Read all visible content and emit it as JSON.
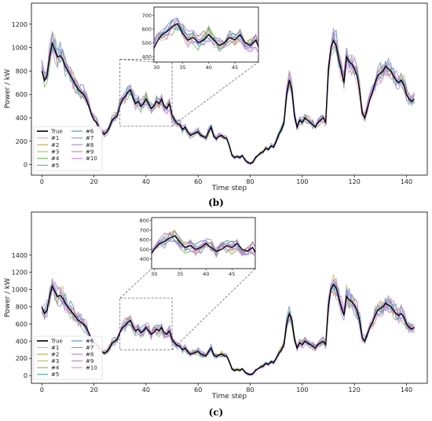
{
  "panels": [
    {
      "label": "(b)",
      "xlabel": "Time step",
      "ylabel": "Power / kW"
    },
    {
      "label": "(c)",
      "xlabel": "Time step",
      "ylabel": "Power / kW"
    }
  ],
  "legend_entries": [
    "True",
    "#1",
    "#2",
    "#3",
    "#4",
    "#5",
    "#6",
    "#7",
    "#8",
    "#9",
    "#10"
  ],
  "series_colors": {
    "True": "#000000",
    "#1": "#f0a3b0",
    "#2": "#c9a02a",
    "#3": "#c7b35a",
    "#4": "#6dba4a",
    "#5": "#4ab3a8",
    "#6": "#3a8ed8",
    "#7": "#7b8ff0",
    "#8": "#a38ae0",
    "#9": "#c07ad8",
    "#10": "#e27fd9"
  },
  "chart_data": [
    {
      "type": "line",
      "panel": "(b)",
      "xlabel": "Time step",
      "ylabel": "Power / kW",
      "xlim": [
        -4,
        148
      ],
      "ylim": [
        -90,
        1380
      ],
      "xticks": [
        0,
        20,
        40,
        60,
        80,
        100,
        120,
        140
      ],
      "yticks": [
        0,
        200,
        400,
        600,
        800,
        1000,
        1200
      ],
      "grid": false,
      "legend_position": "lower-left",
      "true_series": {
        "x_start": 0,
        "values": [
          800,
          720,
          760,
          920,
          1040,
          980,
          920,
          930,
          900,
          840,
          800,
          760,
          720,
          680,
          640,
          620,
          600,
          560,
          500,
          430,
          380,
          360,
          310,
          280,
          260,
          280,
          320,
          380,
          400,
          420,
          500,
          560,
          580,
          620,
          640,
          570,
          520,
          540,
          500,
          520,
          560,
          520,
          480,
          500,
          540,
          520,
          560,
          500,
          480,
          520,
          420,
          380,
          350,
          340,
          300,
          320,
          280,
          250,
          260,
          270,
          280,
          250,
          240,
          230,
          280,
          320,
          240,
          220,
          240,
          250,
          230,
          220,
          160,
          80,
          60,
          70,
          60,
          80,
          40,
          20,
          10,
          20,
          60,
          80,
          100,
          110,
          140,
          130,
          160,
          150,
          200,
          260,
          300,
          360,
          600,
          720,
          640,
          420,
          320,
          380,
          360,
          400,
          380,
          360,
          340,
          320,
          360,
          380,
          400,
          360,
          800,
          1000,
          1060,
          1020,
          900,
          800,
          700,
          920,
          880,
          860,
          820,
          760,
          640,
          440,
          400,
          480,
          560,
          620,
          700,
          760,
          780,
          800,
          840,
          820,
          800,
          760,
          720,
          700,
          720,
          680,
          600,
          560,
          540,
          560
        ],
        "noise": 0.09
      },
      "inset": {
        "xlim": [
          29.5,
          49.5
        ],
        "ylim": [
          360,
          760
        ],
        "xticks": [
          30,
          35,
          40,
          45
        ],
        "yticks": [
          400,
          500,
          600,
          700
        ]
      },
      "zoom_box": {
        "x": [
          30,
          50
        ],
        "y": [
          330,
          900
        ]
      }
    },
    {
      "type": "line",
      "panel": "(c)",
      "xlabel": "Time step",
      "ylabel": "Power / kW",
      "xlim": [
        -4,
        148
      ],
      "ylim": [
        -90,
        1900
      ],
      "xticks": [
        0,
        20,
        40,
        60,
        80,
        100,
        120,
        140
      ],
      "yticks": [
        0,
        200,
        400,
        600,
        800,
        1000,
        1200,
        1400
      ],
      "grid": false,
      "legend_position": "lower-left",
      "true_series": {
        "x_start": 0,
        "values": [
          800,
          720,
          760,
          920,
          1040,
          980,
          920,
          930,
          900,
          840,
          800,
          760,
          720,
          680,
          640,
          620,
          600,
          560,
          500,
          430,
          380,
          360,
          310,
          280,
          260,
          280,
          320,
          380,
          400,
          420,
          500,
          560,
          580,
          620,
          640,
          570,
          520,
          540,
          500,
          520,
          560,
          520,
          480,
          500,
          540,
          520,
          560,
          500,
          480,
          520,
          420,
          380,
          350,
          340,
          300,
          320,
          280,
          250,
          260,
          270,
          280,
          250,
          240,
          230,
          280,
          320,
          240,
          220,
          240,
          250,
          230,
          220,
          160,
          80,
          60,
          70,
          60,
          80,
          40,
          20,
          10,
          20,
          60,
          80,
          100,
          110,
          140,
          130,
          160,
          150,
          200,
          260,
          300,
          360,
          600,
          720,
          640,
          420,
          320,
          380,
          360,
          400,
          380,
          360,
          340,
          320,
          360,
          380,
          400,
          360,
          800,
          1000,
          1060,
          1020,
          900,
          800,
          700,
          920,
          880,
          860,
          820,
          760,
          640,
          440,
          400,
          480,
          560,
          620,
          700,
          760,
          780,
          800,
          840,
          820,
          800,
          760,
          720,
          700,
          720,
          680,
          600,
          560,
          540,
          560
        ],
        "noise": 0.12
      },
      "inset": {
        "xlim": [
          29.5,
          49.5
        ],
        "ylim": [
          300,
          830
        ],
        "xticks": [
          30,
          35,
          40,
          45
        ],
        "yticks": [
          400,
          500,
          600,
          700,
          800
        ]
      },
      "zoom_box": {
        "x": [
          30,
          50
        ],
        "y": [
          300,
          900
        ]
      }
    }
  ]
}
